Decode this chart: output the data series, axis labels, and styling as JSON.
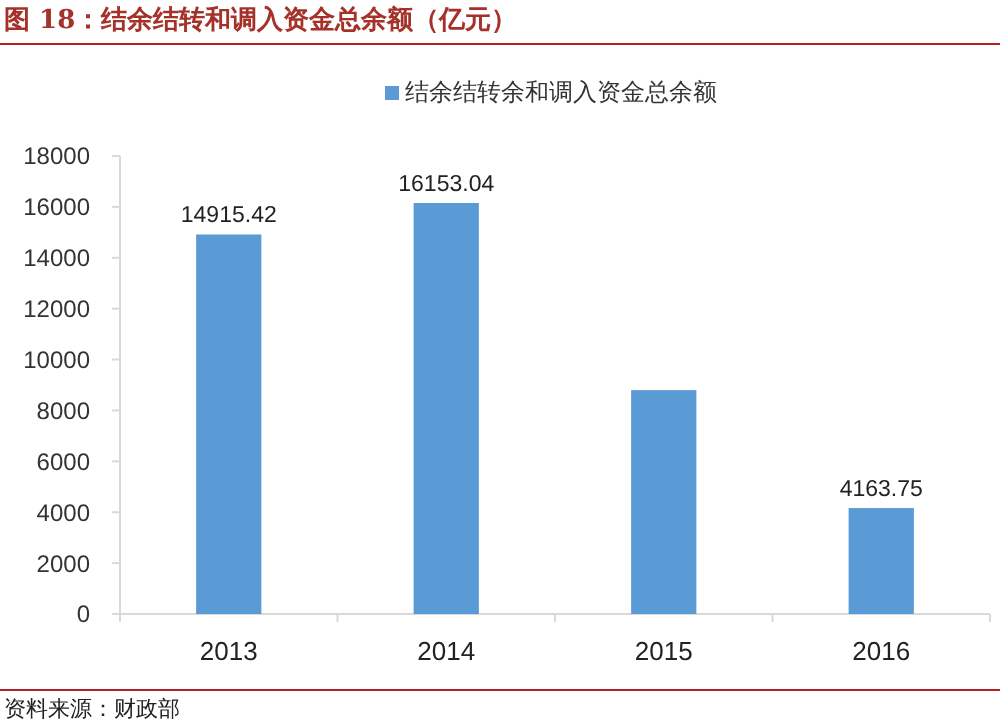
{
  "chart_data": {
    "type": "bar",
    "title": "图 18：结余结转和调入资金总余额（亿元）",
    "categories": [
      "2013",
      "2014",
      "2015",
      "2016"
    ],
    "series": [
      {
        "name": "结余结转余和调入资金总余额",
        "color": "#5b9bd5",
        "values": [
          14915.42,
          16153.04,
          8800,
          4163.75
        ],
        "value_labels": [
          "14915.42",
          "16153.04",
          null,
          "4163.75"
        ]
      }
    ],
    "ylim": [
      0,
      18000
    ],
    "yticks": [
      0,
      2000,
      4000,
      6000,
      8000,
      10000,
      12000,
      14000,
      16000,
      18000
    ],
    "grid": false,
    "legend": "top",
    "annotations": [
      "资料来源：财政部"
    ]
  }
}
